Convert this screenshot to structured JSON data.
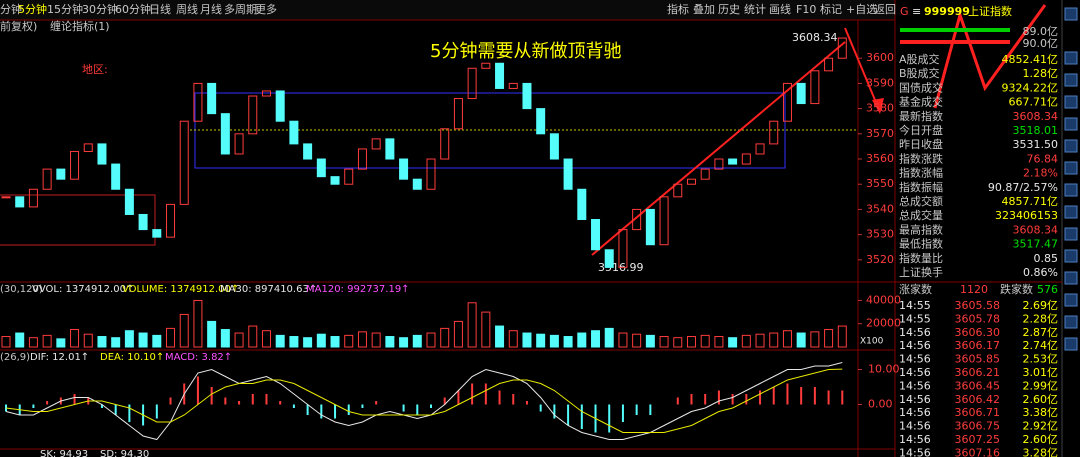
{
  "toolbar": {
    "tabs": [
      "分钟",
      "5分钟",
      "15分钟",
      "30分钟",
      "60分钟",
      "日线",
      "周线",
      "月线",
      "多周期",
      "更多"
    ],
    "buttons": [
      "指标",
      "叠加",
      "历史",
      "统计",
      "画线",
      "F10",
      "标记",
      "+自选",
      "返回"
    ]
  },
  "subbar": [
    "前复权)",
    "缠论指标(1)"
  ],
  "annotations": {
    "headline": "5分钟需要从新做顶背驰",
    "region": "地区:",
    "high": 3608.34,
    "low": 3516.99
  },
  "chart": {
    "price": {
      "ylim": [
        3512,
        3610
      ],
      "yticks": [
        3520,
        3530,
        3540,
        3550,
        3560,
        3570,
        3580,
        3590,
        3600
      ],
      "closes": [
        3545,
        3541,
        3548,
        3556,
        3552,
        3563,
        3566,
        3558,
        3548,
        3538,
        3532,
        3529,
        3542,
        3575,
        3590,
        3578,
        3562,
        3570,
        3585,
        3587,
        3575,
        3566,
        3560,
        3553,
        3550,
        3556,
        3564,
        3568,
        3560,
        3552,
        3548,
        3560,
        3572,
        3584,
        3596,
        3598,
        3588,
        3590,
        3580,
        3570,
        3560,
        3548,
        3536,
        3524,
        3517,
        3532,
        3540,
        3526,
        3545,
        3550,
        3552,
        3556,
        3560,
        3558,
        3562,
        3566,
        3575,
        3590,
        3582,
        3595,
        3600,
        3608
      ]
    },
    "volume": {
      "header": [
        "(30,120)",
        "VVOL: 1374912.00↑",
        "VOLUME: 1374912.00↑",
        "MA30: 897410.63↑",
        "MA120: 992737.19↑"
      ],
      "unit": "X100",
      "ylim": [
        0,
        55000
      ],
      "yticks": [
        20000,
        40000
      ],
      "values": [
        9000,
        12000,
        8000,
        10000,
        7000,
        15000,
        11000,
        9000,
        8000,
        14000,
        12000,
        10000,
        16000,
        28000,
        40000,
        22000,
        15000,
        12000,
        18000,
        14000,
        10000,
        9000,
        8000,
        11000,
        9000,
        10000,
        13000,
        12000,
        9000,
        8000,
        10000,
        12000,
        16000,
        22000,
        38000,
        30000,
        18000,
        14000,
        12000,
        11000,
        10000,
        9000,
        12000,
        14000,
        16000,
        12000,
        11000,
        10000,
        9000,
        8000,
        9000,
        10000,
        9000,
        8000,
        10000,
        11000,
        12000,
        14000,
        12000,
        13000,
        15000,
        18000
      ]
    },
    "macd": {
      "header": [
        "(26,9)",
        "DIF: 12.01↑",
        "DEA: 10.10↑",
        "MACD: 3.82↑"
      ],
      "ylim": [
        -15,
        15
      ],
      "yticks": [
        {
          "value": 0,
          "label": "0.00"
        },
        {
          "value": 10,
          "label": "10.00"
        }
      ],
      "hist": [
        -2,
        -3,
        -1,
        1,
        2,
        3,
        2,
        -1,
        -3,
        -5,
        -6,
        -4,
        2,
        6,
        8,
        5,
        2,
        1,
        3,
        3,
        1,
        -1,
        -3,
        -4,
        -4,
        -3,
        -1,
        1,
        0,
        -2,
        -3,
        -1,
        2,
        4,
        6,
        6,
        4,
        3,
        1,
        -2,
        -4,
        -6,
        -7,
        -8,
        -8,
        -5,
        -3,
        -3,
        0,
        2,
        3,
        3,
        4,
        3,
        3,
        4,
        5,
        6,
        5,
        5,
        4,
        4
      ],
      "dif": [
        -2,
        -3,
        -3,
        -1,
        1,
        2,
        2,
        0,
        -3,
        -6,
        -9,
        -10,
        -5,
        3,
        9,
        10,
        8,
        6,
        7,
        8,
        6,
        3,
        0,
        -3,
        -5,
        -6,
        -5,
        -3,
        -2,
        -3,
        -4,
        -3,
        0,
        4,
        8,
        10,
        9,
        8,
        6,
        2,
        -3,
        -6,
        -8,
        -9,
        -10,
        -10,
        -9,
        -8,
        -6,
        -4,
        -2,
        -1,
        1,
        2,
        4,
        6,
        8,
        10,
        10,
        11,
        11,
        12.01
      ],
      "dea": [
        -1,
        -1.5,
        -2,
        -2,
        -1,
        0,
        1,
        1,
        0,
        -1,
        -3,
        -5,
        -5,
        -3,
        0,
        3,
        5,
        6,
        6,
        7,
        7,
        6,
        4,
        2,
        0,
        -2,
        -3,
        -3,
        -3,
        -3,
        -3,
        -3,
        -2,
        0,
        2,
        4,
        6,
        7,
        7,
        6,
        4,
        1,
        -2,
        -4,
        -6,
        -8,
        -8,
        -8,
        -8,
        -7,
        -6,
        -4,
        -2,
        -1,
        1,
        3,
        5,
        7,
        8,
        9,
        10,
        10.1
      ]
    },
    "kdj": [
      "SK: 94.93",
      "SD: 94.30"
    ]
  },
  "panel": {
    "header": {
      "flag": "G",
      "code": "999999",
      "name": "上证指数"
    },
    "bars": [
      "89.0亿",
      "90.0亿"
    ],
    "rows": [
      [
        "A股成交",
        "4852.41亿"
      ],
      [
        "B股成交",
        "1.28亿"
      ],
      [
        "国债成交",
        "9324.22亿"
      ],
      [
        "基金成交",
        "667.71亿"
      ],
      [
        "最新指数",
        "3608.34"
      ],
      [
        "今日开盘",
        "3518.01"
      ],
      [
        "昨日收盘",
        "3531.50"
      ],
      [
        "指数涨跌",
        "76.84"
      ],
      [
        "指数涨幅",
        "2.18%"
      ],
      [
        "指数振幅",
        "90.87/2.57%"
      ],
      [
        "总成交额",
        "4857.71亿"
      ],
      [
        "总成交量",
        "323406153"
      ],
      [
        "最高指数",
        "3608.34"
      ],
      [
        "最低指数",
        "3517.47"
      ],
      [
        "指数量比",
        "0.85"
      ],
      [
        "上证换手",
        "0.86%"
      ]
    ],
    "breadth": [
      "涨家数",
      "1120",
      "跌家数",
      "576"
    ],
    "ticks": [
      [
        "14:55",
        "3605.58",
        "2.69亿"
      ],
      [
        "14:55",
        "3605.78",
        "2.28亿"
      ],
      [
        "14:56",
        "3606.30",
        "2.87亿"
      ],
      [
        "14:56",
        "3606.17",
        "2.74亿"
      ],
      [
        "14:56",
        "3605.85",
        "2.53亿"
      ],
      [
        "14:56",
        "3606.21",
        "3.01亿"
      ],
      [
        "14:56",
        "3606.45",
        "2.99亿"
      ],
      [
        "14:56",
        "3606.42",
        "2.60亿"
      ],
      [
        "14:56",
        "3606.71",
        "3.38亿"
      ],
      [
        "14:56",
        "3606.75",
        "2.92亿"
      ],
      [
        "14:56",
        "3607.25",
        "2.60亿"
      ],
      [
        "14:56",
        "3607.16",
        "3.28亿"
      ]
    ]
  }
}
